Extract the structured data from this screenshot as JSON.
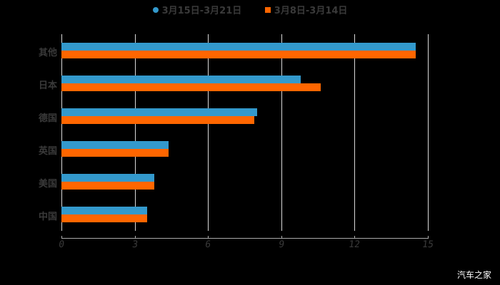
{
  "chart_data": {
    "type": "bar",
    "orientation": "horizontal",
    "title": "",
    "xlabel": "",
    "ylabel": "",
    "categories": [
      "其他",
      "日本",
      "德国",
      "英国",
      "美国",
      "中国"
    ],
    "series": [
      {
        "name": "3月15日-3月21日",
        "color": "#3399cc",
        "values": [
          14.5,
          9.8,
          8.0,
          4.4,
          3.8,
          3.5
        ]
      },
      {
        "name": "3月8日-3月14日",
        "color": "#ff6600",
        "values": [
          14.5,
          10.6,
          7.9,
          4.4,
          3.8,
          3.5
        ]
      }
    ],
    "xlim": [
      0,
      15
    ],
    "xticks": [
      "0",
      "3",
      "6",
      "9",
      "12",
      "15"
    ],
    "grid": true,
    "legend_position": "top"
  },
  "legend": {
    "series1": "3月15日-3月21日",
    "series2": "3月8日-3月14日"
  },
  "watermark": "汽车之家"
}
